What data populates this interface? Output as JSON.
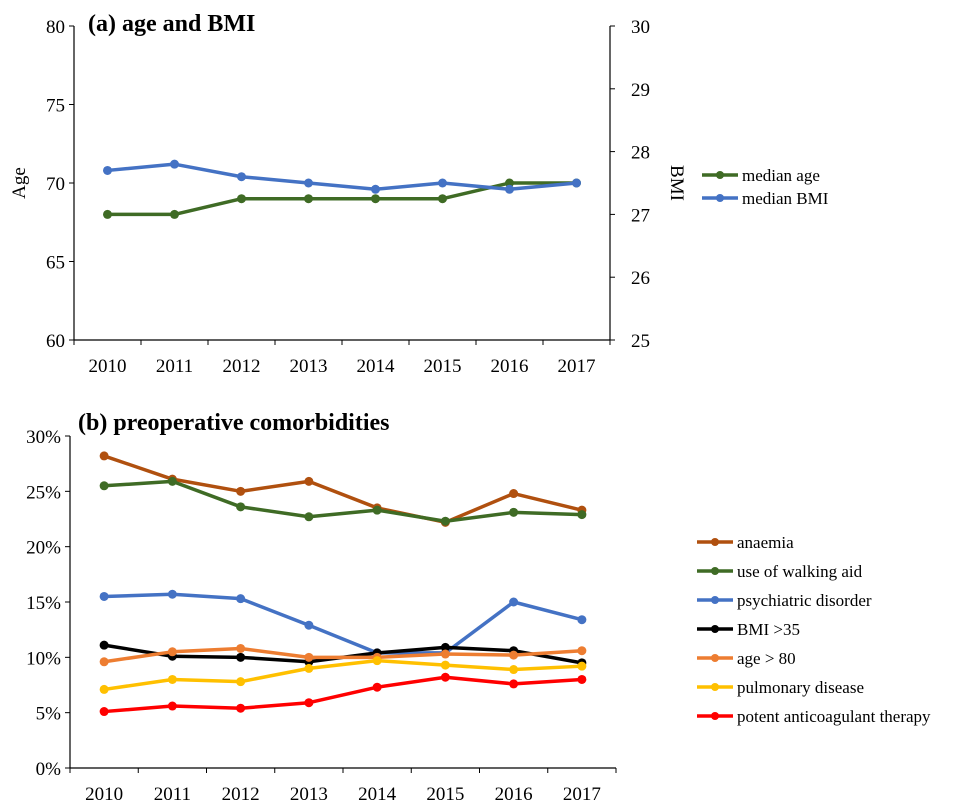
{
  "chart_data": [
    {
      "type": "line",
      "title": "(a) age and BMI",
      "x": [
        "2010",
        "2011",
        "2012",
        "2013",
        "2014",
        "2015",
        "2016",
        "2017"
      ],
      "ylabel": "Age",
      "ylim": [
        60,
        80
      ],
      "yticks": [
        "60",
        "65",
        "70",
        "75",
        "80"
      ],
      "y2label": "BMI",
      "y2lim": [
        25,
        30
      ],
      "y2ticks": [
        "25",
        "26",
        "27",
        "28",
        "29",
        "30"
      ],
      "legend_position": "right",
      "series": [
        {
          "name": "median age",
          "axis": "left",
          "color": "#3f6b25",
          "values": [
            68,
            68,
            69,
            69,
            69,
            69,
            70,
            70
          ]
        },
        {
          "name": "median BMI",
          "axis": "right",
          "color": "#4472c4",
          "values": [
            27.7,
            27.8,
            27.6,
            27.5,
            27.4,
            27.5,
            27.4,
            27.5
          ]
        }
      ]
    },
    {
      "type": "line",
      "title": "(b) preoperative comorbidities",
      "x": [
        "2010",
        "2011",
        "2012",
        "2013",
        "2014",
        "2015",
        "2016",
        "2017"
      ],
      "ylim": [
        0,
        30
      ],
      "yticks": [
        "0%",
        "5%",
        "10%",
        "15%",
        "20%",
        "25%",
        "30%"
      ],
      "legend_position": "right",
      "series": [
        {
          "name": "anaemia",
          "color": "#b0500f",
          "values": [
            28.2,
            26.1,
            25.0,
            25.9,
            23.5,
            22.2,
            24.8,
            23.3
          ]
        },
        {
          "name": "use of walking aid",
          "color": "#3f6b25",
          "values": [
            25.5,
            25.9,
            23.6,
            22.7,
            23.3,
            22.3,
            23.1,
            22.9
          ]
        },
        {
          "name": "psychiatric disorder",
          "color": "#4472c4",
          "values": [
            15.5,
            15.7,
            15.3,
            12.9,
            10.4,
            10.4,
            15.0,
            13.4
          ]
        },
        {
          "name": "BMI >35",
          "color": "#000000",
          "values": [
            11.1,
            10.1,
            10.0,
            9.6,
            10.4,
            10.9,
            10.6,
            9.5
          ]
        },
        {
          "name": "age > 80",
          "color": "#ed7d31",
          "values": [
            9.6,
            10.5,
            10.8,
            10.0,
            10.0,
            10.3,
            10.2,
            10.6
          ]
        },
        {
          "name": "pulmonary disease",
          "color": "#ffc000",
          "values": [
            7.1,
            8.0,
            7.8,
            9.0,
            9.7,
            9.3,
            8.9,
            9.2
          ]
        },
        {
          "name": "potent anticoagulant therapy",
          "color": "#ff0000",
          "values": [
            5.1,
            5.6,
            5.4,
            5.9,
            7.3,
            8.2,
            7.6,
            8.0
          ]
        }
      ]
    }
  ]
}
